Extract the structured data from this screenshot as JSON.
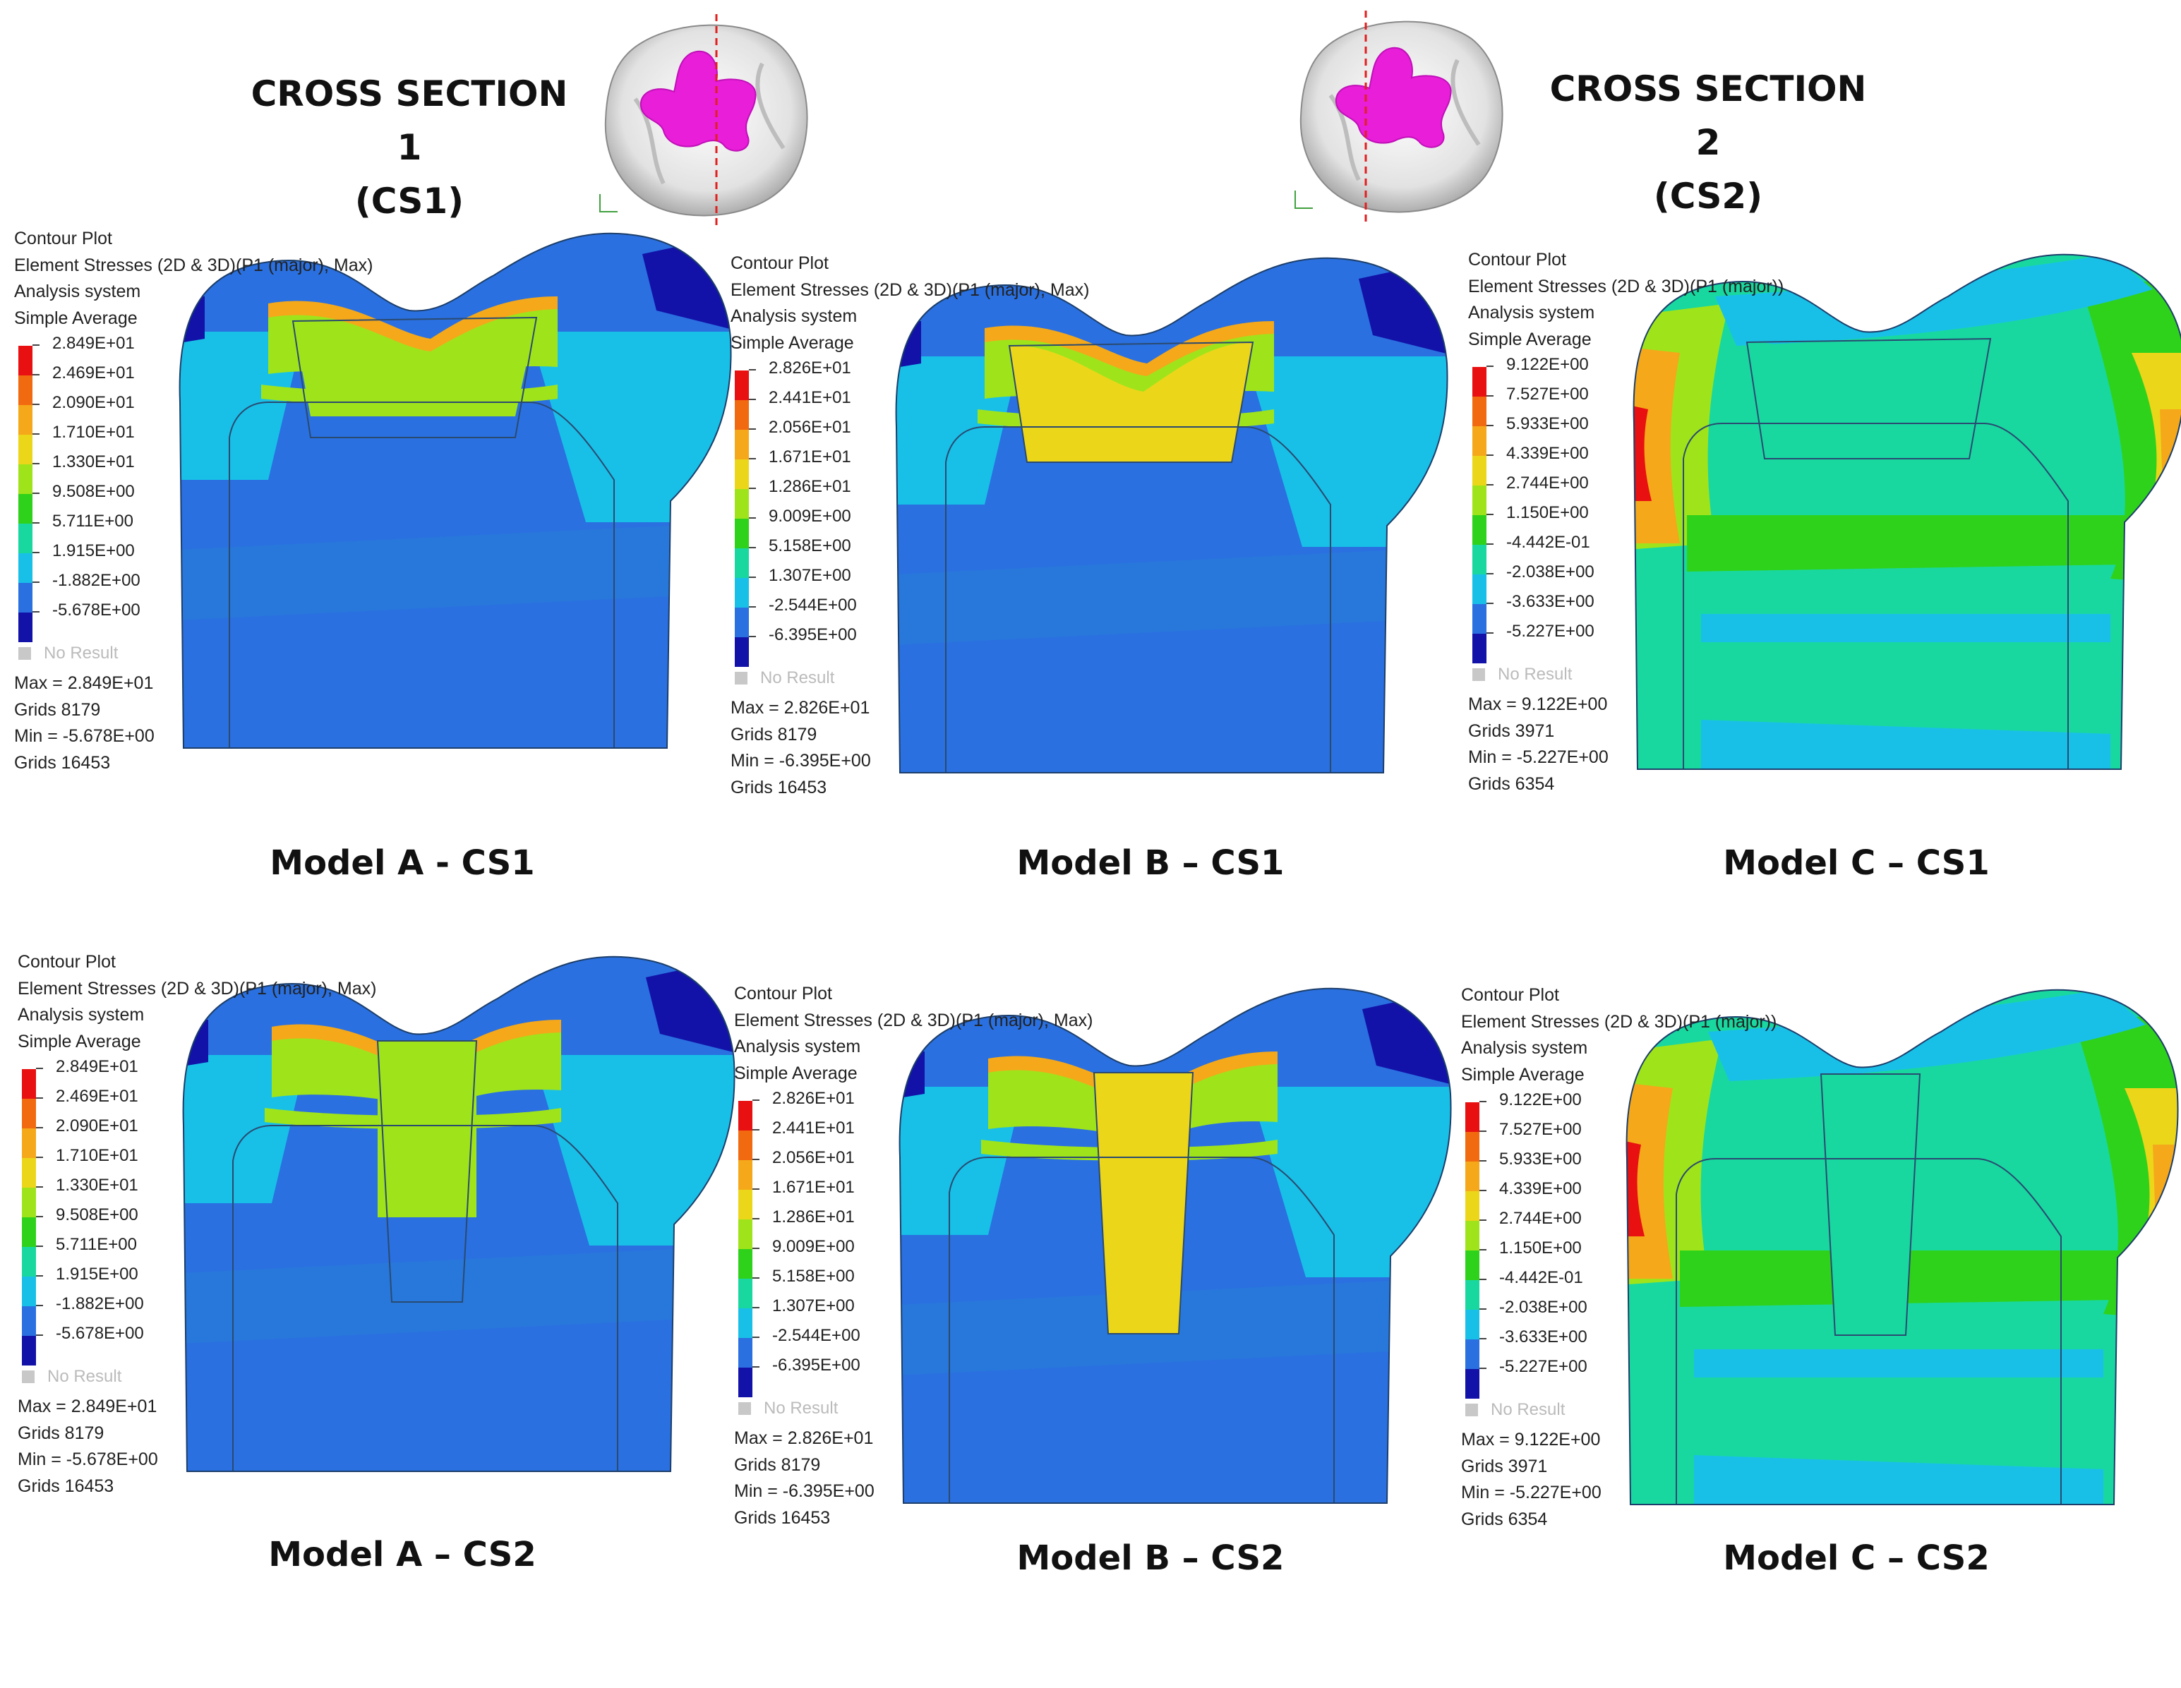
{
  "header": {
    "cs1_title_line1": "CROSS SECTION 1",
    "cs1_title_line2": "(CS1)",
    "cs2_title_line1": "CROSS SECTION 2",
    "cs2_title_line2": "(CS2)"
  },
  "colors": {
    "dentin": "#1f6fd8",
    "enamel_base": "#3a8ae4",
    "inlay_magenta": "#e81ed8",
    "scale": [
      "#e81010",
      "#f26a10",
      "#f5a81a",
      "#ecd61a",
      "#9fe41a",
      "#2fd21a",
      "#18d8a0",
      "#18c0e8",
      "#2a70e0",
      "#1212a8"
    ]
  },
  "panels": [
    {
      "id": "A-CS1",
      "variant": "A",
      "section": "CS1",
      "caption": "Model A - CS1",
      "meta": [
        "Contour Plot",
        "Element Stresses (2D & 3D)(P1 (major), Max)",
        "Analysis system",
        "Simple Average"
      ],
      "legend": [
        "2.849E+01",
        "2.469E+01",
        "2.090E+01",
        "1.710E+01",
        "1.330E+01",
        "9.508E+00",
        "5.711E+00",
        "1.915E+00",
        "-1.882E+00",
        "-5.678E+00"
      ],
      "no_result": "No Result",
      "stats": [
        "Max = 2.849E+01",
        "Grids 8179",
        "Min = -5.678E+00",
        "Grids 16453"
      ]
    },
    {
      "id": "B-CS1",
      "variant": "B",
      "section": "CS1",
      "caption": "Model B – CS1",
      "meta": [
        "Contour Plot",
        "Element Stresses (2D & 3D)(P1 (major), Max)",
        "Analysis system",
        "Simple Average"
      ],
      "legend": [
        "2.826E+01",
        "2.441E+01",
        "2.056E+01",
        "1.671E+01",
        "1.286E+01",
        "9.009E+00",
        "5.158E+00",
        "1.307E+00",
        "-2.544E+00",
        "-6.395E+00"
      ],
      "no_result": "No Result",
      "stats": [
        "Max = 2.826E+01",
        "Grids 8179",
        "Min = -6.395E+00",
        "Grids 16453"
      ]
    },
    {
      "id": "C-CS1",
      "variant": "C",
      "section": "CS1",
      "caption": "Model C – CS1",
      "meta": [
        "Contour Plot",
        "Element Stresses (2D & 3D)(P1 (major))",
        "Analysis system",
        "Simple Average"
      ],
      "legend": [
        "9.122E+00",
        "7.527E+00",
        "5.933E+00",
        "4.339E+00",
        "2.744E+00",
        "1.150E+00",
        "-4.442E-01",
        "-2.038E+00",
        "-3.633E+00",
        "-5.227E+00"
      ],
      "no_result": "No Result",
      "stats": [
        "Max = 9.122E+00",
        "Grids 3971",
        "Min = -5.227E+00",
        "Grids 6354"
      ]
    },
    {
      "id": "A-CS2",
      "variant": "A",
      "section": "CS2",
      "caption": "Model A – CS2",
      "meta": [
        "Contour Plot",
        "Element Stresses (2D & 3D)(P1 (major), Max)",
        "Analysis system",
        "Simple Average"
      ],
      "legend": [
        "2.849E+01",
        "2.469E+01",
        "2.090E+01",
        "1.710E+01",
        "1.330E+01",
        "9.508E+00",
        "5.711E+00",
        "1.915E+00",
        "-1.882E+00",
        "-5.678E+00"
      ],
      "no_result": "No Result",
      "stats": [
        "Max = 2.849E+01",
        "Grids 8179",
        "Min = -5.678E+00",
        "Grids 16453"
      ]
    },
    {
      "id": "B-CS2",
      "variant": "B",
      "section": "CS2",
      "caption": "Model B – CS2",
      "meta": [
        "Contour Plot",
        "Element Stresses (2D & 3D)(P1 (major), Max)",
        "Analysis system",
        "Simple Average"
      ],
      "legend": [
        "2.826E+01",
        "2.441E+01",
        "2.056E+01",
        "1.671E+01",
        "1.286E+01",
        "9.009E+00",
        "5.158E+00",
        "1.307E+00",
        "-2.544E+00",
        "-6.395E+00"
      ],
      "no_result": "No Result",
      "stats": [
        "Max = 2.826E+01",
        "Grids 8179",
        "Min = -6.395E+00",
        "Grids 16453"
      ]
    },
    {
      "id": "C-CS2",
      "variant": "C",
      "section": "CS2",
      "caption": "Model C – CS2",
      "meta": [
        "Contour Plot",
        "Element Stresses (2D & 3D)(P1 (major))",
        "Analysis system",
        "Simple Average"
      ],
      "legend": [
        "9.122E+00",
        "7.527E+00",
        "5.933E+00",
        "4.339E+00",
        "2.744E+00",
        "1.150E+00",
        "-4.442E-01",
        "-2.038E+00",
        "-3.633E+00",
        "-5.227E+00"
      ],
      "no_result": "No Result",
      "stats": [
        "Max = 9.122E+00",
        "Grids 3971",
        "Min = -5.227E+00",
        "Grids 6354"
      ]
    }
  ]
}
